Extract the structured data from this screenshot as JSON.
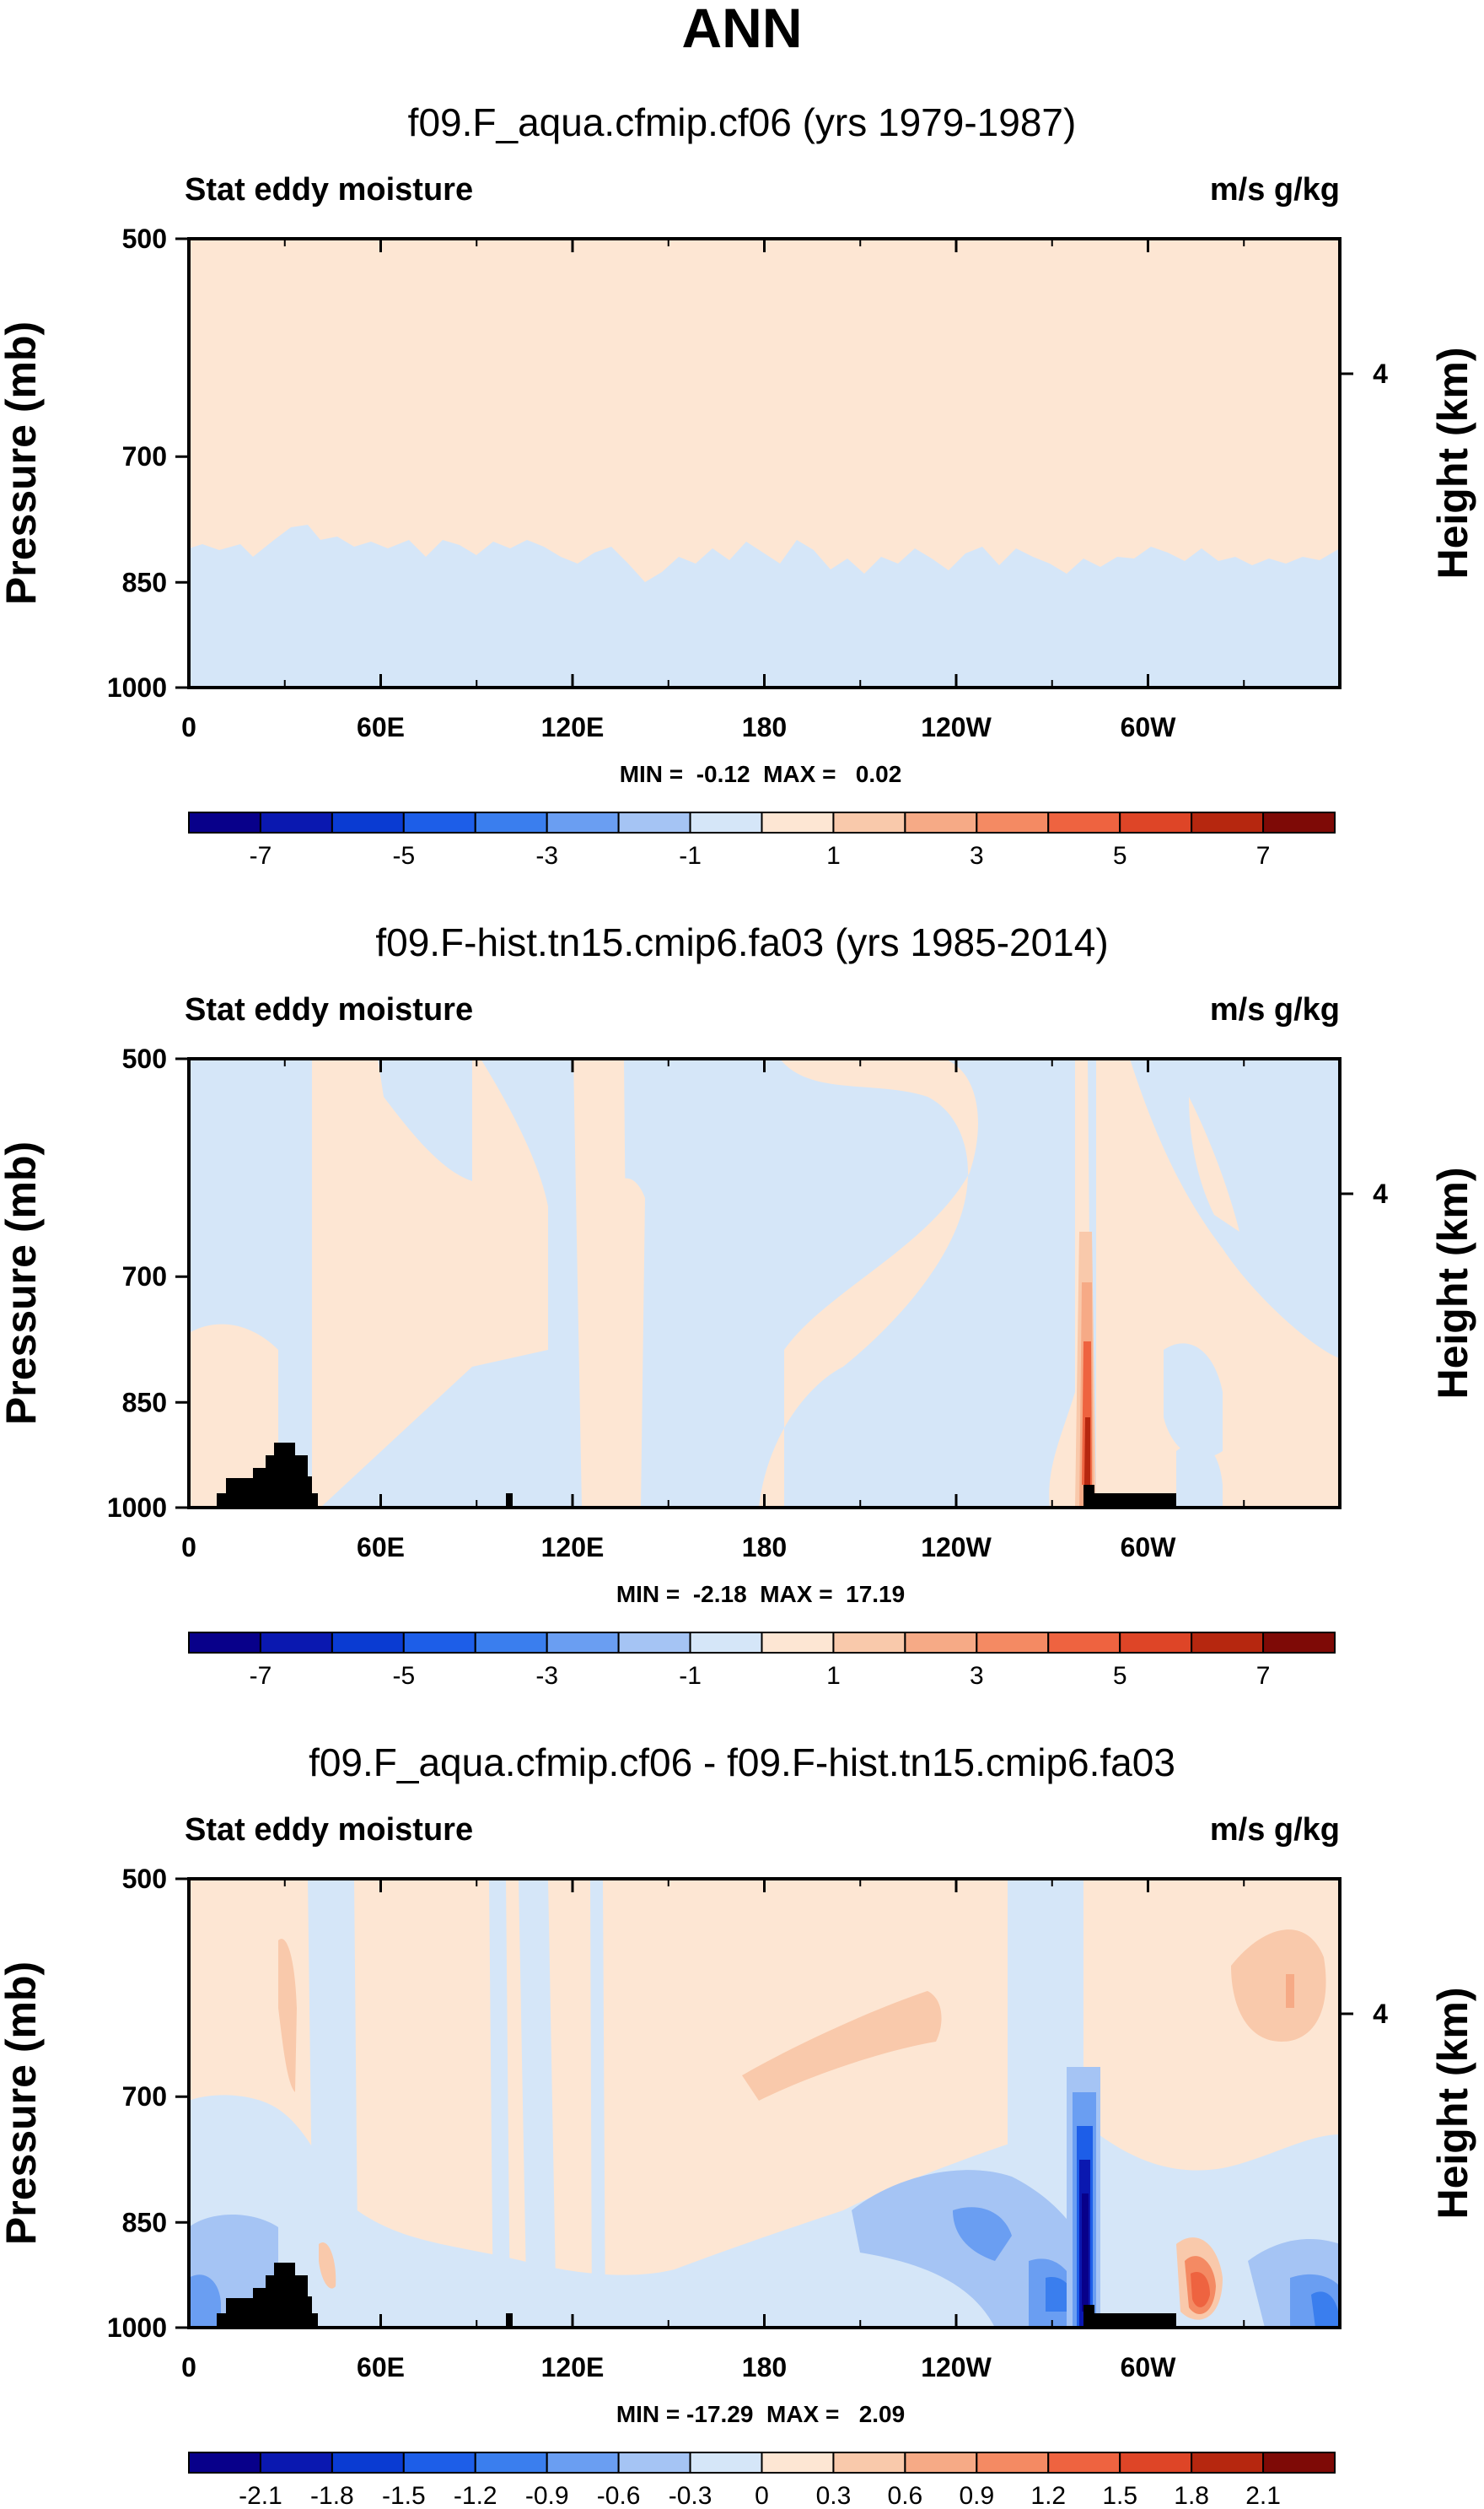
{
  "page_title": "ANN",
  "chart_data": [
    {
      "type": "heatmap",
      "title": "f09.F_aqua.cfmip.cf06 (yrs 1979-1987)",
      "left_label": "Stat eddy moisture",
      "right_label": "m/s g/kg",
      "ylabel": "Pressure (mb)",
      "ylabel_right": "Height (km)",
      "yticks": [
        "500",
        "700",
        "850",
        "1000"
      ],
      "ytick_values": [
        500,
        700,
        850,
        1000
      ],
      "ylim": [
        1000,
        500
      ],
      "right_ticks": [
        "4"
      ],
      "xlabel": "",
      "xticks": [
        "0",
        "60E",
        "120E",
        "180",
        "120W",
        "60W"
      ],
      "xtick_values": [
        0,
        60,
        120,
        180,
        240,
        300
      ],
      "xlim": [
        0,
        360
      ],
      "stats": "MIN =  -0.12  MAX =   0.02",
      "min": -0.12,
      "max": 0.02,
      "colorbar": {
        "colors": [
          "#08008a",
          "#0a18b0",
          "#0a3bd2",
          "#1d5ee8",
          "#3a7eee",
          "#6a9ef2",
          "#a5c4f4",
          "#d5e6f8",
          "#fde6d3",
          "#f9c9ab",
          "#f6aa86",
          "#f48a63",
          "#ee6340",
          "#de4527",
          "#b6270f",
          "#7e0a06"
        ],
        "labels": [
          "-7",
          "-5",
          "-3",
          "-1",
          "1",
          "3",
          "5",
          "7"
        ]
      }
    },
    {
      "type": "heatmap",
      "title": "f09.F-hist.tn15.cmip6.fa03 (yrs 1985-2014)",
      "left_label": "Stat eddy moisture",
      "right_label": "m/s g/kg",
      "ylabel": "Pressure (mb)",
      "ylabel_right": "Height (km)",
      "yticks": [
        "500",
        "700",
        "850",
        "1000"
      ],
      "ytick_values": [
        500,
        700,
        850,
        1000
      ],
      "ylim": [
        1000,
        500
      ],
      "right_ticks": [
        "4"
      ],
      "xlabel": "",
      "xticks": [
        "0",
        "60E",
        "120E",
        "180",
        "120W",
        "60W"
      ],
      "xtick_values": [
        0,
        60,
        120,
        180,
        240,
        300
      ],
      "xlim": [
        0,
        360
      ],
      "stats": "MIN =  -2.18  MAX =  17.19",
      "min": -2.18,
      "max": 17.19,
      "colorbar": {
        "colors": [
          "#08008a",
          "#0a18b0",
          "#0a3bd2",
          "#1d5ee8",
          "#3a7eee",
          "#6a9ef2",
          "#a5c4f4",
          "#d5e6f8",
          "#fde6d3",
          "#f9c9ab",
          "#f6aa86",
          "#f48a63",
          "#ee6340",
          "#de4527",
          "#b6270f",
          "#7e0a06"
        ],
        "labels": [
          "-7",
          "-5",
          "-3",
          "-1",
          "1",
          "3",
          "5",
          "7"
        ]
      }
    },
    {
      "type": "heatmap",
      "title": "f09.F_aqua.cfmip.cf06 - f09.F-hist.tn15.cmip6.fa03",
      "left_label": "Stat eddy moisture",
      "right_label": "m/s g/kg",
      "ylabel": "Pressure (mb)",
      "ylabel_right": "Height (km)",
      "yticks": [
        "500",
        "700",
        "850",
        "1000"
      ],
      "ytick_values": [
        500,
        700,
        850,
        1000
      ],
      "ylim": [
        1000,
        500
      ],
      "right_ticks": [
        "4"
      ],
      "xlabel": "",
      "xticks": [
        "0",
        "60E",
        "120E",
        "180",
        "120W",
        "60W"
      ],
      "xtick_values": [
        0,
        60,
        120,
        180,
        240,
        300
      ],
      "xlim": [
        0,
        360
      ],
      "stats": "MIN = -17.29  MAX =   2.09",
      "min": -17.29,
      "max": 2.09,
      "colorbar": {
        "colors": [
          "#08008a",
          "#0a18b0",
          "#0a3bd2",
          "#1d5ee8",
          "#3a7eee",
          "#6a9ef2",
          "#a5c4f4",
          "#d5e6f8",
          "#fde6d3",
          "#f9c9ab",
          "#f6aa86",
          "#f48a63",
          "#ee6340",
          "#de4527",
          "#b6270f",
          "#7e0a06"
        ],
        "labels": [
          "-2.1",
          "-1.8",
          "-1.5",
          "-1.2",
          "-0.9",
          "-0.6",
          "-0.3",
          "0",
          "0.3",
          "0.6",
          "0.9",
          "1.2",
          "1.5",
          "1.8",
          "2.1"
        ]
      }
    }
  ]
}
